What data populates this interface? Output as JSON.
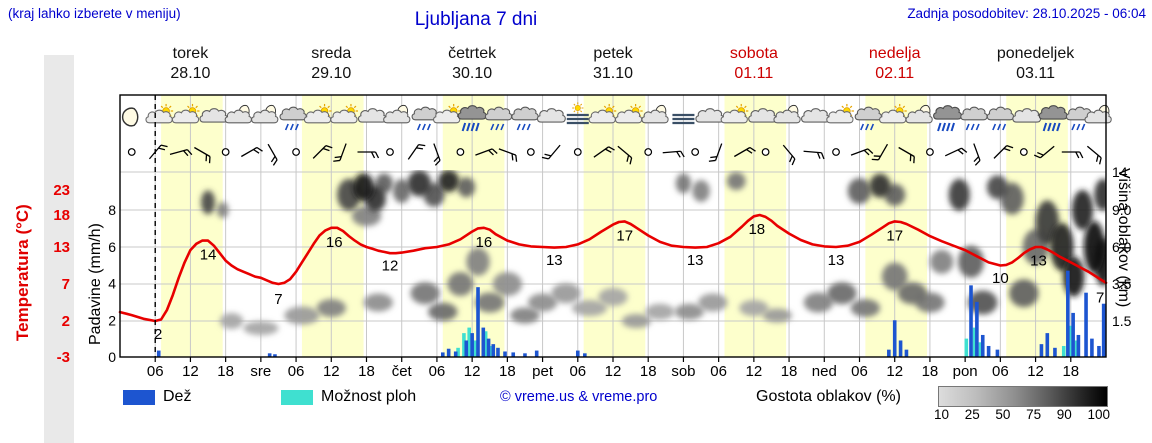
{
  "header": {
    "note": "(kraj lahko izberete v meniju)",
    "title": "Ljubljana 7 dni",
    "updated": "Zadnja posodobitev: 28.10.2025 - 06:04"
  },
  "axes": {
    "temp_label": "Temperatura (°C)",
    "precip_label": "Padavine (mm/h)",
    "cloud_label": "Višina oblakov (km)",
    "temp_ticks": [
      23,
      18,
      13,
      7,
      2,
      -3
    ],
    "precip_ticks": [
      8,
      6,
      4,
      2,
      0
    ],
    "cloud_tick_labels": [
      "14",
      "9.0",
      "6.0",
      "3.5",
      "1.5"
    ],
    "cloud_tick_km": [
      14,
      9,
      6,
      3.5,
      1.5
    ]
  },
  "days": [
    {
      "name": "torek",
      "date": "28.10",
      "color": "#111111"
    },
    {
      "name": "sreda",
      "date": "29.10",
      "color": "#111111"
    },
    {
      "name": "četrtek",
      "date": "30.10",
      "color": "#111111"
    },
    {
      "name": "petek",
      "date": "31.10",
      "color": "#111111"
    },
    {
      "name": "sobota",
      "date": "01.11",
      "color": "#cc0000"
    },
    {
      "name": "nedelja",
      "date": "02.11",
      "color": "#cc0000"
    },
    {
      "name": "ponedeljek",
      "date": "03.11",
      "color": "#111111"
    }
  ],
  "legend": {
    "rain": "Dež",
    "showers": "Možnost ploh",
    "credit": "© vreme.us & vreme.pro",
    "cloud_density": "Gostota oblakov (%)",
    "density_scale": [
      "10",
      "25",
      "50",
      "75",
      "90",
      "100"
    ]
  },
  "colors": {
    "blue_text": "#0000cd",
    "red": "#e80000",
    "day_red": "#cc0000",
    "rain": "#1d55d0",
    "showers": "#3fe0d0",
    "day_band": "#fdffcc",
    "grid": "#c8c8c8"
  },
  "chart_data": {
    "type": "line",
    "title": "Ljubljana 7 dni",
    "x_hours_range": [
      0,
      168
    ],
    "temp_axis_c": [
      -3,
      23
    ],
    "precip_axis_mm": [
      0,
      8
    ],
    "cloud_axis_km": [
      0,
      14
    ],
    "now_line_hour": 6,
    "time_ticks": [
      [
        6,
        "06"
      ],
      [
        12,
        "12"
      ],
      [
        18,
        "18"
      ],
      [
        24,
        "sre"
      ],
      [
        30,
        "06"
      ],
      [
        36,
        "12"
      ],
      [
        42,
        "18"
      ],
      [
        48,
        "čet"
      ],
      [
        54,
        "06"
      ],
      [
        60,
        "12"
      ],
      [
        66,
        "18"
      ],
      [
        72,
        "pet"
      ],
      [
        78,
        "06"
      ],
      [
        84,
        "12"
      ],
      [
        90,
        "18"
      ],
      [
        96,
        "sob"
      ],
      [
        102,
        "06"
      ],
      [
        108,
        "12"
      ],
      [
        114,
        "18"
      ],
      [
        120,
        "ned"
      ],
      [
        126,
        "06"
      ],
      [
        132,
        "12"
      ],
      [
        138,
        "18"
      ],
      [
        144,
        "pon"
      ],
      [
        150,
        "06"
      ],
      [
        156,
        "12"
      ],
      [
        162,
        "18"
      ]
    ],
    "temperature": [
      [
        0,
        3.2
      ],
      [
        2,
        2.8
      ],
      [
        4,
        2.3
      ],
      [
        6,
        2
      ],
      [
        7,
        2.2
      ],
      [
        8,
        3.5
      ],
      [
        9,
        5.5
      ],
      [
        10,
        8
      ],
      [
        11,
        10.5
      ],
      [
        12,
        12.5
      ],
      [
        13,
        13.5
      ],
      [
        14,
        14
      ],
      [
        15,
        14
      ],
      [
        16,
        13.2
      ],
      [
        17,
        12
      ],
      [
        18,
        10.8
      ],
      [
        19,
        10
      ],
      [
        20,
        9.4
      ],
      [
        21,
        9
      ],
      [
        22,
        8.6
      ],
      [
        23,
        8.2
      ],
      [
        24,
        8
      ],
      [
        25,
        7.6
      ],
      [
        26,
        7.2
      ],
      [
        27,
        7
      ],
      [
        28,
        7.2
      ],
      [
        29,
        7.8
      ],
      [
        30,
        9
      ],
      [
        31,
        10.5
      ],
      [
        32,
        12
      ],
      [
        33,
        13.5
      ],
      [
        34,
        14.8
      ],
      [
        35,
        15.6
      ],
      [
        36,
        16
      ],
      [
        37,
        16
      ],
      [
        38,
        15.5
      ],
      [
        39,
        14.7
      ],
      [
        40,
        14
      ],
      [
        41,
        13.4
      ],
      [
        42,
        13
      ],
      [
        43,
        12.7
      ],
      [
        44,
        12.4
      ],
      [
        45,
        12.2
      ],
      [
        46,
        12
      ],
      [
        47,
        12
      ],
      [
        48,
        12.1
      ],
      [
        50,
        12.4
      ],
      [
        52,
        12.8
      ],
      [
        54,
        13
      ],
      [
        56,
        13.4
      ],
      [
        58,
        14.2
      ],
      [
        60,
        15.4
      ],
      [
        61,
        15.9
      ],
      [
        62,
        16
      ],
      [
        63,
        15.7
      ],
      [
        64,
        15
      ],
      [
        66,
        14
      ],
      [
        68,
        13.4
      ],
      [
        70,
        13.1
      ],
      [
        72,
        13
      ],
      [
        74,
        12.9
      ],
      [
        76,
        13
      ],
      [
        78,
        13.4
      ],
      [
        80,
        14.2
      ],
      [
        82,
        15.4
      ],
      [
        84,
        16.5
      ],
      [
        85,
        16.9
      ],
      [
        86,
        17
      ],
      [
        87,
        16.6
      ],
      [
        88,
        16
      ],
      [
        90,
        14.8
      ],
      [
        92,
        13.8
      ],
      [
        94,
        13.2
      ],
      [
        96,
        13
      ],
      [
        98,
        12.9
      ],
      [
        100,
        13
      ],
      [
        102,
        13.6
      ],
      [
        104,
        14.6
      ],
      [
        106,
        16.2
      ],
      [
        107,
        17.1
      ],
      [
        108,
        17.8
      ],
      [
        109,
        18
      ],
      [
        110,
        17.7
      ],
      [
        111,
        17.1
      ],
      [
        112,
        16.3
      ],
      [
        114,
        15.1
      ],
      [
        116,
        14.1
      ],
      [
        118,
        13.4
      ],
      [
        120,
        13.1
      ],
      [
        122,
        13
      ],
      [
        124,
        13.2
      ],
      [
        126,
        13.8
      ],
      [
        128,
        14.9
      ],
      [
        130,
        16.1
      ],
      [
        131,
        16.7
      ],
      [
        132,
        17
      ],
      [
        133,
        16.9
      ],
      [
        134,
        16.6
      ],
      [
        136,
        15.7
      ],
      [
        138,
        14.7
      ],
      [
        140,
        13.9
      ],
      [
        142,
        13.2
      ],
      [
        144,
        12.5
      ],
      [
        146,
        11.5
      ],
      [
        148,
        10.5
      ],
      [
        150,
        10
      ],
      [
        151,
        10.1
      ],
      [
        152,
        10.5
      ],
      [
        153,
        11.2
      ],
      [
        154,
        12
      ],
      [
        155,
        12.6
      ],
      [
        156,
        13
      ],
      [
        157,
        13
      ],
      [
        158,
        12.6
      ],
      [
        159,
        12.1
      ],
      [
        160,
        11.5
      ],
      [
        161,
        11
      ],
      [
        162,
        10.5
      ],
      [
        163,
        10
      ],
      [
        164,
        9.5
      ],
      [
        165,
        9
      ],
      [
        166,
        8.4
      ],
      [
        167,
        7.8
      ],
      [
        168,
        7.2
      ]
    ],
    "temp_point_labels": [
      [
        6.5,
        0.2,
        "2"
      ],
      [
        15,
        11.8,
        "14"
      ],
      [
        27,
        5,
        "7"
      ],
      [
        36.5,
        13.8,
        "16"
      ],
      [
        46,
        10,
        "12"
      ],
      [
        62,
        13.8,
        "16"
      ],
      [
        74,
        10.9,
        "13"
      ],
      [
        86,
        14.8,
        "17"
      ],
      [
        98,
        10.9,
        "13"
      ],
      [
        108.5,
        15.8,
        "18"
      ],
      [
        122,
        10.9,
        "13"
      ],
      [
        132,
        14.8,
        "17"
      ],
      [
        150,
        8,
        "10"
      ],
      [
        156.5,
        10.8,
        "13"
      ],
      [
        167,
        5.2,
        "7"
      ]
    ],
    "rain_bars_mm": [
      [
        6.6,
        0.35
      ],
      [
        25.5,
        0.2
      ],
      [
        26.4,
        0.15
      ],
      [
        55,
        0.25
      ],
      [
        56,
        0.45
      ],
      [
        57.2,
        0.3
      ],
      [
        59,
        0.9
      ],
      [
        60,
        1.3
      ],
      [
        61,
        3.8
      ],
      [
        61.9,
        1.6
      ],
      [
        62.8,
        1.0
      ],
      [
        63.6,
        0.7
      ],
      [
        64.4,
        0.5
      ],
      [
        65.6,
        0.3
      ],
      [
        67,
        0.25
      ],
      [
        69,
        0.2
      ],
      [
        71,
        0.35
      ],
      [
        78,
        0.35
      ],
      [
        79.2,
        0.2
      ],
      [
        131,
        0.4
      ],
      [
        132,
        2.0
      ],
      [
        133,
        0.9
      ],
      [
        134,
        0.4
      ],
      [
        145,
        3.9
      ],
      [
        146,
        3.0
      ],
      [
        147,
        1.2
      ],
      [
        148,
        0.6
      ],
      [
        149.5,
        0.4
      ],
      [
        157,
        0.7
      ],
      [
        158,
        1.3
      ],
      [
        159.3,
        0.5
      ],
      [
        161.5,
        4.7
      ],
      [
        162.4,
        2.4
      ],
      [
        163.3,
        1.2
      ],
      [
        164.6,
        3.5
      ],
      [
        165.6,
        1.0
      ],
      [
        166.8,
        0.6
      ],
      [
        167.6,
        2.9
      ]
    ],
    "shower_bars_mm": [
      [
        57.6,
        0.5
      ],
      [
        58.6,
        1.3
      ],
      [
        59.5,
        1.6
      ],
      [
        60.5,
        0.9
      ],
      [
        62.3,
        1.4
      ],
      [
        63.2,
        0.6
      ],
      [
        144.2,
        1.0
      ],
      [
        145.6,
        1.6
      ],
      [
        146.6,
        0.8
      ],
      [
        160.8,
        0.6
      ],
      [
        162,
        1.7
      ],
      [
        163,
        0.9
      ]
    ],
    "weather_icons": [
      [
        2,
        "moon"
      ],
      [
        7,
        "sun-cloud"
      ],
      [
        11.5,
        "sun-cloud"
      ],
      [
        16,
        "cloud"
      ],
      [
        20.5,
        "moon-cloud"
      ],
      [
        25,
        "moon-cloud"
      ],
      [
        29.5,
        "cloud-rain"
      ],
      [
        34,
        "sun-cloud"
      ],
      [
        38.5,
        "sun-cloud"
      ],
      [
        43,
        "cloud"
      ],
      [
        47.5,
        "moon-cloud"
      ],
      [
        52,
        "cloud-rain"
      ],
      [
        56,
        "sun-cloud"
      ],
      [
        60,
        "cloud-rain-heavy"
      ],
      [
        64.5,
        "cloud-rain"
      ],
      [
        69,
        "cloud-rain"
      ],
      [
        73.5,
        "cloud"
      ],
      [
        78,
        "fog-sun"
      ],
      [
        82.5,
        "sun-cloud"
      ],
      [
        87,
        "sun-cloud"
      ],
      [
        91.5,
        "moon-cloud"
      ],
      [
        96,
        "fog"
      ],
      [
        100.5,
        "cloud"
      ],
      [
        105,
        "sun-cloud"
      ],
      [
        109.5,
        "cloud"
      ],
      [
        114,
        "moon-cloud"
      ],
      [
        118.5,
        "cloud"
      ],
      [
        123,
        "sun-cloud"
      ],
      [
        127.5,
        "cloud-rain"
      ],
      [
        132,
        "sun-cloud"
      ],
      [
        136.5,
        "moon-cloud"
      ],
      [
        141,
        "cloud-rain-heavy"
      ],
      [
        145.5,
        "cloud-rain"
      ],
      [
        150,
        "cloud-rain"
      ],
      [
        154.5,
        "cloud"
      ],
      [
        159,
        "cloud-rain-heavy"
      ],
      [
        163.5,
        "cloud-rain"
      ],
      [
        167,
        "moon-cloud"
      ]
    ],
    "wind": [
      [
        2,
        "calm"
      ],
      [
        6,
        40
      ],
      [
        10,
        75
      ],
      [
        14,
        120
      ],
      [
        18,
        "calm"
      ],
      [
        22,
        60
      ],
      [
        26,
        150
      ],
      [
        30,
        "calm"
      ],
      [
        34,
        45
      ],
      [
        38,
        200
      ],
      [
        42,
        90
      ],
      [
        46,
        "calm"
      ],
      [
        50,
        35
      ],
      [
        54,
        160
      ],
      [
        58,
        "calm"
      ],
      [
        62,
        70
      ],
      [
        66,
        110
      ],
      [
        70,
        "calm"
      ],
      [
        74,
        220
      ],
      [
        78,
        "calm"
      ],
      [
        82,
        55
      ],
      [
        86,
        130
      ],
      [
        90,
        "calm"
      ],
      [
        94,
        85
      ],
      [
        98,
        "calm"
      ],
      [
        102,
        200
      ],
      [
        106,
        60
      ],
      [
        110,
        "calm"
      ],
      [
        114,
        140
      ],
      [
        118,
        95
      ],
      [
        122,
        "calm"
      ],
      [
        126,
        70
      ],
      [
        130,
        210
      ],
      [
        134,
        120
      ],
      [
        138,
        "calm"
      ],
      [
        142,
        65
      ],
      [
        146,
        160
      ],
      [
        150,
        45
      ],
      [
        154,
        "calm"
      ],
      [
        158,
        230
      ],
      [
        162,
        90
      ],
      [
        166,
        130
      ]
    ],
    "clouds": [
      [
        15,
        10,
        1.2,
        12,
        0.7
      ],
      [
        17.5,
        9,
        1,
        8,
        0.45
      ],
      [
        19,
        1.5,
        2,
        8,
        0.3
      ],
      [
        24,
        1.2,
        3,
        7,
        0.3
      ],
      [
        31,
        1.8,
        3,
        9,
        0.35
      ],
      [
        36,
        2.2,
        2.5,
        9,
        0.45
      ],
      [
        39,
        11,
        2,
        16,
        0.7
      ],
      [
        41.5,
        12,
        1.8,
        14,
        0.9
      ],
      [
        43.5,
        10.5,
        1.8,
        13,
        0.8
      ],
      [
        45,
        12.5,
        1.5,
        10,
        0.6
      ],
      [
        42,
        8.5,
        2.5,
        10,
        0.45
      ],
      [
        44,
        2.5,
        2.5,
        9,
        0.4
      ],
      [
        48,
        11.5,
        1.5,
        12,
        0.55
      ],
      [
        51,
        12.5,
        2,
        13,
        0.8
      ],
      [
        53.5,
        11,
        1.8,
        12,
        0.65
      ],
      [
        56,
        12.8,
        1.8,
        11,
        0.85
      ],
      [
        59,
        12,
        1.5,
        10,
        0.6
      ],
      [
        52,
        3,
        2.5,
        11,
        0.5
      ],
      [
        55,
        2,
        2.5,
        9,
        0.55
      ],
      [
        58,
        3.5,
        2.2,
        12,
        0.5
      ],
      [
        61,
        5,
        2,
        14,
        0.45
      ],
      [
        63,
        2.5,
        2.5,
        10,
        0.5
      ],
      [
        66,
        3.5,
        2.5,
        12,
        0.4
      ],
      [
        69,
        1.8,
        2.5,
        8,
        0.45
      ],
      [
        72,
        2.5,
        2.5,
        9,
        0.4
      ],
      [
        76,
        3,
        2.5,
        10,
        0.35
      ],
      [
        80,
        2.2,
        3,
        8,
        0.3
      ],
      [
        84,
        2.8,
        2.5,
        9,
        0.3
      ],
      [
        88,
        1.5,
        2.5,
        7,
        0.35
      ],
      [
        92,
        2,
        2.5,
        8,
        0.3
      ],
      [
        96,
        12.5,
        1.3,
        10,
        0.5
      ],
      [
        99,
        11.5,
        1.5,
        11,
        0.45
      ],
      [
        97,
        2,
        2.5,
        8,
        0.4
      ],
      [
        101,
        2.5,
        2.5,
        9,
        0.35
      ],
      [
        105,
        12.8,
        1.6,
        9,
        0.5
      ],
      [
        108,
        2.2,
        2.5,
        8,
        0.3
      ],
      [
        112,
        1.8,
        2.5,
        7,
        0.35
      ],
      [
        119,
        2.5,
        2.5,
        10,
        0.45
      ],
      [
        123,
        3,
        2.5,
        11,
        0.55
      ],
      [
        127,
        2.2,
        2.5,
        9,
        0.5
      ],
      [
        126,
        11.5,
        2,
        13,
        0.6
      ],
      [
        129.5,
        12.2,
        1.8,
        12,
        0.8
      ],
      [
        132,
        11,
        1.8,
        11,
        0.6
      ],
      [
        132,
        4,
        2.2,
        14,
        0.5
      ],
      [
        135,
        3,
        2.5,
        11,
        0.55
      ],
      [
        138,
        2.5,
        2.5,
        10,
        0.5
      ],
      [
        140,
        5,
        2,
        12,
        0.45
      ],
      [
        143,
        11,
        1.8,
        16,
        0.75
      ],
      [
        145,
        5,
        2.2,
        16,
        0.6
      ],
      [
        147,
        2.5,
        2.5,
        12,
        0.65
      ],
      [
        149.5,
        12,
        1.8,
        12,
        0.7
      ],
      [
        152,
        10.5,
        2,
        16,
        0.6
      ],
      [
        154,
        3,
        2.5,
        14,
        0.6
      ],
      [
        156,
        6,
        2.2,
        18,
        0.55
      ],
      [
        158,
        8,
        2,
        22,
        0.75
      ],
      [
        160.5,
        6,
        2,
        24,
        0.85
      ],
      [
        162.5,
        4,
        1.8,
        20,
        0.9
      ],
      [
        164,
        9,
        1.8,
        20,
        0.85
      ],
      [
        166,
        6,
        1.8,
        26,
        0.95
      ],
      [
        167.5,
        5,
        1.5,
        24,
        0.9
      ],
      [
        167.5,
        11,
        1.5,
        16,
        0.8
      ]
    ]
  }
}
